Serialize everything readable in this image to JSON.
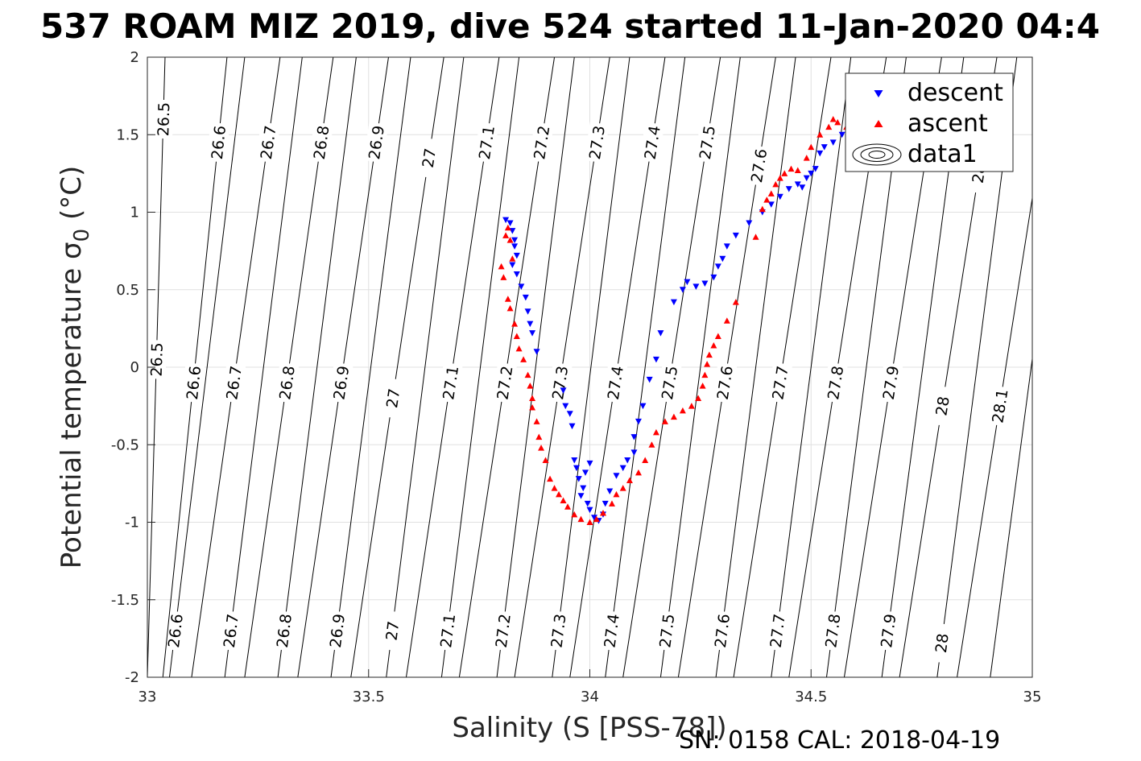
{
  "chart_data": {
    "type": "scatter",
    "title": "537 ROAM MIZ 2019, dive 524 started 11-Jan-2020 04:4",
    "xlabel": "Salinity (S [PSS-78])",
    "ylabel_main": "Potential temperature ",
    "ylabel_sym": "σ",
    "ylabel_sub": "0",
    "ylabel_unit": " (°C)",
    "footnote": "SN: 0158  CAL: 2018-04-19",
    "xlim": [
      33,
      35
    ],
    "ylim": [
      -2,
      2
    ],
    "xticks": [
      "33",
      "33.5",
      "34",
      "34.5",
      "35"
    ],
    "yticks": [
      "2",
      "1.5",
      "1",
      "0.5",
      "0",
      "-0.5",
      "-1",
      "-1.5",
      "-2"
    ],
    "grid": true,
    "legend_position": "top-right",
    "legend": [
      "descent",
      "ascent",
      "data1"
    ],
    "colors": {
      "descent": "#0000ff",
      "ascent": "#ff0000",
      "contour": "#000000",
      "grid": "#e0e0e0"
    },
    "contours": [
      {
        "x_bottom": 33.05,
        "x_top": 33.22,
        "labels": [
          {
            "text": "26.6",
            "y": -1.7
          }
        ]
      },
      {
        "x_bottom": 33.175,
        "x_top": 33.35,
        "labels": [
          {
            "text": "26.7",
            "y": -1.7
          }
        ]
      },
      {
        "x_bottom": 33.295,
        "x_top": 33.472,
        "labels": [
          {
            "text": "26.8",
            "y": -1.7
          }
        ]
      },
      {
        "x_bottom": 33.415,
        "x_top": 33.595,
        "labels": [
          {
            "text": "26.9",
            "y": -1.7
          }
        ]
      },
      {
        "x_bottom": 33.54,
        "x_top": 33.715,
        "labels": [
          {
            "text": "27",
            "y": -1.7
          }
        ]
      },
      {
        "x_bottom": 33.665,
        "x_top": 33.84,
        "labels": [
          {
            "text": "27.1",
            "y": -1.7
          }
        ]
      },
      {
        "x_bottom": 33.79,
        "x_top": 33.965,
        "labels": [
          {
            "text": "27.2",
            "y": -1.7
          }
        ]
      },
      {
        "x_bottom": 33.915,
        "x_top": 34.09,
        "labels": [
          {
            "text": "27.3",
            "y": -1.7
          }
        ]
      },
      {
        "x_bottom": 34.035,
        "x_top": 34.215,
        "labels": [
          {
            "text": "27.4",
            "y": -1.7
          }
        ]
      },
      {
        "x_bottom": 34.16,
        "x_top": 34.34,
        "labels": [
          {
            "text": "27.5",
            "y": -1.7
          }
        ]
      },
      {
        "x_bottom": 34.285,
        "x_top": 34.465,
        "labels": [
          {
            "text": "27.6",
            "y": -1.7
          }
        ]
      },
      {
        "x_bottom": 34.41,
        "x_top": 34.59,
        "labels": [
          {
            "text": "27.7",
            "y": -1.7
          }
        ]
      },
      {
        "x_bottom": 34.535,
        "x_top": 34.715,
        "labels": [
          {
            "text": "27.8",
            "y": -1.7
          }
        ]
      },
      {
        "x_bottom": 34.66,
        "x_top": 34.845,
        "labels": [
          {
            "text": "27.9",
            "y": -1.7
          }
        ]
      },
      {
        "x_bottom": 34.785,
        "x_top": 34.965,
        "labels": [
          {
            "text": "28",
            "y": -1.78
          }
        ]
      },
      {
        "x_bottom": 34.905,
        "x_top": 35.09,
        "labels": []
      },
      {
        "x_bottom": 33.0,
        "x_top": 33.04,
        "labels": [
          {
            "text": "26.5",
            "y": 1.6
          },
          {
            "text": "26.5",
            "y": 0.05
          }
        ]
      },
      {
        "x_bottom": 33.035,
        "x_top": 33.18,
        "labels": [
          {
            "text": "26.6",
            "y": 1.45
          },
          {
            "text": "26.6",
            "y": -0.1
          }
        ]
      },
      {
        "x_bottom": 33.1,
        "x_top": 33.3,
        "labels": [
          {
            "text": "26.7",
            "y": 1.45
          },
          {
            "text": "26.7",
            "y": -0.1
          }
        ]
      },
      {
        "x_bottom": 33.22,
        "x_top": 33.42,
        "labels": [
          {
            "text": "26.8",
            "y": 1.45
          },
          {
            "text": "26.8",
            "y": -0.1
          }
        ]
      },
      {
        "x_bottom": 33.34,
        "x_top": 33.545,
        "labels": [
          {
            "text": "26.9",
            "y": 1.45
          },
          {
            "text": "26.9",
            "y": -0.1
          }
        ]
      },
      {
        "x_bottom": 33.46,
        "x_top": 33.67,
        "labels": [
          {
            "text": "27",
            "y": 1.35
          },
          {
            "text": "27",
            "y": -0.2
          }
        ]
      },
      {
        "x_bottom": 33.585,
        "x_top": 33.795,
        "labels": [
          {
            "text": "27.1",
            "y": 1.45
          },
          {
            "text": "27.1",
            "y": -0.1
          }
        ]
      },
      {
        "x_bottom": 33.705,
        "x_top": 33.92,
        "labels": [
          {
            "text": "27.2",
            "y": 1.45
          },
          {
            "text": "27.2",
            "y": -0.1
          }
        ]
      },
      {
        "x_bottom": 33.83,
        "x_top": 34.045,
        "labels": [
          {
            "text": "27.3",
            "y": 1.45
          },
          {
            "text": "27.3",
            "y": -0.1
          }
        ]
      },
      {
        "x_bottom": 33.955,
        "x_top": 34.17,
        "labels": [
          {
            "text": "27.4",
            "y": 1.45
          },
          {
            "text": "27.4",
            "y": -0.1
          }
        ]
      },
      {
        "x_bottom": 34.075,
        "x_top": 34.295,
        "labels": [
          {
            "text": "27.5",
            "y": 1.45
          },
          {
            "text": "27.5",
            "y": -0.1
          }
        ]
      },
      {
        "x_bottom": 34.2,
        "x_top": 34.42,
        "labels": [
          {
            "text": "27.6",
            "y": 1.3
          },
          {
            "text": "27.6",
            "y": -0.1
          }
        ]
      },
      {
        "x_bottom": 34.325,
        "x_top": 34.545,
        "labels": [
          {
            "text": "27.7",
            "y": -0.1
          }
        ]
      },
      {
        "x_bottom": 34.45,
        "x_top": 34.67,
        "labels": [
          {
            "text": "27.8",
            "y": -0.1
          }
        ]
      },
      {
        "x_bottom": 34.575,
        "x_top": 34.795,
        "labels": [
          {
            "text": "27.9",
            "y": -0.1
          }
        ]
      },
      {
        "x_bottom": 34.7,
        "x_top": 34.92,
        "labels": [
          {
            "text": "28",
            "y": -0.25
          },
          {
            "text": "28",
            "y": 1.25
          }
        ]
      },
      {
        "x_bottom": 34.83,
        "x_top": 35.05,
        "labels": [
          {
            "text": "28.1",
            "y": -0.25
          }
        ]
      }
    ],
    "series": [
      {
        "name": "descent",
        "marker": "triangle-down",
        "points": [
          [
            33.81,
            0.95
          ],
          [
            33.82,
            0.93
          ],
          [
            33.825,
            0.88
          ],
          [
            33.83,
            0.82
          ],
          [
            33.83,
            0.78
          ],
          [
            33.835,
            0.72
          ],
          [
            33.825,
            0.66
          ],
          [
            33.835,
            0.6
          ],
          [
            33.845,
            0.52
          ],
          [
            33.855,
            0.45
          ],
          [
            33.86,
            0.36
          ],
          [
            33.865,
            0.28
          ],
          [
            33.87,
            0.22
          ],
          [
            33.88,
            0.1
          ],
          [
            33.94,
            -0.15
          ],
          [
            33.945,
            -0.25
          ],
          [
            33.955,
            -0.3
          ],
          [
            33.96,
            -0.38
          ],
          [
            33.965,
            -0.6
          ],
          [
            33.97,
            -0.65
          ],
          [
            33.975,
            -0.72
          ],
          [
            33.99,
            -0.68
          ],
          [
            34.0,
            -0.62
          ],
          [
            33.985,
            -0.78
          ],
          [
            33.98,
            -0.83
          ],
          [
            33.995,
            -0.88
          ],
          [
            34.0,
            -0.92
          ],
          [
            34.01,
            -0.97
          ],
          [
            34.02,
            -0.99
          ],
          [
            34.03,
            -0.95
          ],
          [
            34.035,
            -0.88
          ],
          [
            34.045,
            -0.8
          ],
          [
            34.06,
            -0.7
          ],
          [
            34.075,
            -0.65
          ],
          [
            34.085,
            -0.6
          ],
          [
            34.1,
            -0.55
          ],
          [
            34.1,
            -0.45
          ],
          [
            34.11,
            -0.35
          ],
          [
            34.12,
            -0.25
          ],
          [
            34.135,
            -0.08
          ],
          [
            34.15,
            0.05
          ],
          [
            34.16,
            0.22
          ],
          [
            34.19,
            0.42
          ],
          [
            34.21,
            0.5
          ],
          [
            34.22,
            0.55
          ],
          [
            34.24,
            0.52
          ],
          [
            34.26,
            0.54
          ],
          [
            34.28,
            0.58
          ],
          [
            34.29,
            0.65
          ],
          [
            34.3,
            0.7
          ],
          [
            34.31,
            0.78
          ],
          [
            34.33,
            0.85
          ],
          [
            34.36,
            0.93
          ],
          [
            34.39,
            1.0
          ],
          [
            34.41,
            1.05
          ],
          [
            34.43,
            1.1
          ],
          [
            34.45,
            1.15
          ],
          [
            34.47,
            1.18
          ],
          [
            34.48,
            1.16
          ],
          [
            34.49,
            1.22
          ],
          [
            34.5,
            1.25
          ],
          [
            34.51,
            1.28
          ],
          [
            34.52,
            1.38
          ],
          [
            34.53,
            1.42
          ],
          [
            34.55,
            1.45
          ],
          [
            34.57,
            1.5
          ],
          [
            34.59,
            1.53
          ]
        ]
      },
      {
        "name": "ascent",
        "marker": "triangle-up",
        "points": [
          [
            33.8,
            0.65
          ],
          [
            33.805,
            0.58
          ],
          [
            33.81,
            0.85
          ],
          [
            33.815,
            0.9
          ],
          [
            33.82,
            0.82
          ],
          [
            33.825,
            0.7
          ],
          [
            33.815,
            0.44
          ],
          [
            33.82,
            0.38
          ],
          [
            33.83,
            0.28
          ],
          [
            33.835,
            0.2
          ],
          [
            33.84,
            0.12
          ],
          [
            33.85,
            0.05
          ],
          [
            33.86,
            -0.05
          ],
          [
            33.865,
            -0.12
          ],
          [
            33.87,
            -0.2
          ],
          [
            33.87,
            -0.26
          ],
          [
            33.88,
            -0.35
          ],
          [
            33.885,
            -0.45
          ],
          [
            33.89,
            -0.52
          ],
          [
            33.9,
            -0.6
          ],
          [
            33.91,
            -0.72
          ],
          [
            33.92,
            -0.78
          ],
          [
            33.93,
            -0.82
          ],
          [
            33.94,
            -0.86
          ],
          [
            33.95,
            -0.9
          ],
          [
            33.965,
            -0.95
          ],
          [
            33.98,
            -0.98
          ],
          [
            34.0,
            -1.0
          ],
          [
            34.015,
            -0.98
          ],
          [
            34.03,
            -0.94
          ],
          [
            34.05,
            -0.88
          ],
          [
            34.06,
            -0.82
          ],
          [
            34.075,
            -0.78
          ],
          [
            34.09,
            -0.73
          ],
          [
            34.11,
            -0.68
          ],
          [
            34.125,
            -0.6
          ],
          [
            34.14,
            -0.5
          ],
          [
            34.15,
            -0.42
          ],
          [
            34.17,
            -0.35
          ],
          [
            34.19,
            -0.32
          ],
          [
            34.21,
            -0.28
          ],
          [
            34.23,
            -0.25
          ],
          [
            34.245,
            -0.2
          ],
          [
            34.255,
            -0.12
          ],
          [
            34.26,
            -0.05
          ],
          [
            34.265,
            0.02
          ],
          [
            34.27,
            0.08
          ],
          [
            34.28,
            0.14
          ],
          [
            34.29,
            0.2
          ],
          [
            34.31,
            0.3
          ],
          [
            34.33,
            0.42
          ],
          [
            34.375,
            0.84
          ],
          [
            34.39,
            1.02
          ],
          [
            34.4,
            1.08
          ],
          [
            34.41,
            1.12
          ],
          [
            34.42,
            1.18
          ],
          [
            34.43,
            1.22
          ],
          [
            34.44,
            1.25
          ],
          [
            34.455,
            1.28
          ],
          [
            34.47,
            1.27
          ],
          [
            34.49,
            1.35
          ],
          [
            34.5,
            1.42
          ],
          [
            34.52,
            1.5
          ],
          [
            34.54,
            1.55
          ],
          [
            34.55,
            1.6
          ],
          [
            34.56,
            1.58
          ],
          [
            34.58,
            1.55
          ]
        ]
      }
    ]
  }
}
